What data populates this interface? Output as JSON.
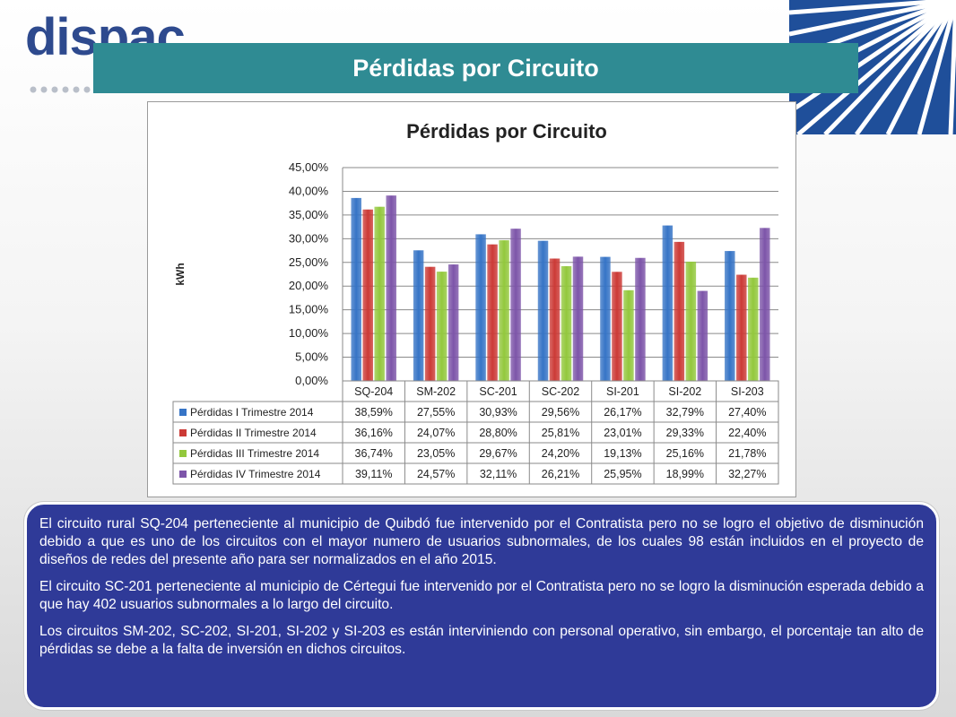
{
  "header": {
    "logo_text": "dispac",
    "title": "Pérdidas por Circuito"
  },
  "chart_data": {
    "type": "bar",
    "title": "Pérdidas por Circuito",
    "ylabel": "kWh",
    "xlabel": "",
    "ylim": [
      0,
      45
    ],
    "ytick_labels": [
      "0,00%",
      "5,00%",
      "10,00%",
      "15,00%",
      "20,00%",
      "25,00%",
      "30,00%",
      "35,00%",
      "40,00%",
      "45,00%"
    ],
    "grid": true,
    "legend_placement": "data-table",
    "categories": [
      "SQ-204",
      "SM-202",
      "SC-201",
      "SC-202",
      "SI-201",
      "SI-202",
      "SI-203"
    ],
    "series": [
      {
        "name": "Pérdidas I Trimestre 2014",
        "color": "#3674c6",
        "values": [
          38.59,
          27.55,
          30.93,
          29.56,
          26.17,
          32.79,
          27.4
        ],
        "labels": [
          "38,59%",
          "27,55%",
          "30,93%",
          "29,56%",
          "26,17%",
          "32,79%",
          "27,40%"
        ]
      },
      {
        "name": "Pérdidas II Trimestre 2014",
        "color": "#cc3a36",
        "values": [
          36.16,
          24.07,
          28.8,
          25.81,
          23.01,
          29.33,
          22.4
        ],
        "labels": [
          "36,16%",
          "24,07%",
          "28,80%",
          "25,81%",
          "23,01%",
          "29,33%",
          "22,40%"
        ]
      },
      {
        "name": "Pérdidas III Trimestre 2014",
        "color": "#93c83d",
        "values": [
          36.74,
          23.05,
          29.67,
          24.2,
          19.13,
          25.16,
          21.78
        ],
        "labels": [
          "36,74%",
          "23,05%",
          "29,67%",
          "24,20%",
          "19,13%",
          "25,16%",
          "21,78%"
        ]
      },
      {
        "name": "Pérdidas IV Trimestre 2014",
        "color": "#7d55a9",
        "values": [
          39.11,
          24.57,
          32.11,
          26.21,
          25.95,
          18.99,
          32.27
        ],
        "labels": [
          "39,11%",
          "24,57%",
          "32,11%",
          "26,21%",
          "25,95%",
          "18,99%",
          "32,27%"
        ]
      }
    ]
  },
  "description": {
    "paragraphs": [
      "El circuito rural SQ-204 perteneciente al municipio de Quibdó fue intervenido por el Contratista pero no se logro el objetivo de disminución debido a que es uno de los circuitos con el mayor numero de usuarios subnormales, de los cuales 98 están incluidos en el proyecto de diseños de redes del presente año para ser normalizados en el año 2015.",
      "El circuito SC-201 perteneciente al municipio de Cértegui fue intervenido por el Contratista pero no se logro la disminución esperada debido a que hay 402 usuarios subnormales a lo largo del circuito.",
      "Los circuitos SM-202, SC-202, SI-201, SI-202 y SI-203 es están interviniendo con personal operativo, sin embargo, el porcentaje tan alto de pérdidas se debe a la falta de inversión en dichos circuitos."
    ]
  }
}
